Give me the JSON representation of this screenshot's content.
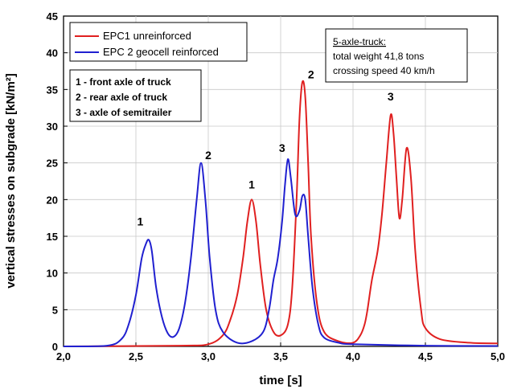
{
  "chart_data": {
    "type": "line",
    "xlabel": "time [s]",
    "ylabel": "vertical stresses on subgrade [kN/m²]",
    "xlim": [
      2.0,
      5.0
    ],
    "ylim": [
      0,
      45
    ],
    "x_ticks": [
      2.0,
      2.5,
      3.0,
      3.5,
      4.0,
      4.5,
      5.0
    ],
    "x_tick_labels": [
      "2,0",
      "2,5",
      "3,0",
      "3,5",
      "4,0",
      "4,5",
      "5,0"
    ],
    "y_ticks": [
      0,
      5,
      10,
      15,
      20,
      25,
      30,
      35,
      40,
      45
    ],
    "y_tick_labels": [
      "0",
      "5",
      "10",
      "15",
      "20",
      "25",
      "30",
      "35",
      "40",
      "45"
    ],
    "grid": true,
    "legend_position": "top-left",
    "series": [
      {
        "name": "EPC1 unreinforced",
        "color": "#e02020",
        "x": [
          2.0,
          2.8,
          3.0,
          3.1,
          3.15,
          3.2,
          3.24,
          3.27,
          3.3,
          3.33,
          3.36,
          3.4,
          3.45,
          3.5,
          3.55,
          3.58,
          3.61,
          3.63,
          3.65,
          3.67,
          3.69,
          3.71,
          3.75,
          3.8,
          3.9,
          4.0,
          4.05,
          4.08,
          4.1,
          4.13,
          4.17,
          4.2,
          4.23,
          4.26,
          4.28,
          4.3,
          4.32,
          4.34,
          4.37,
          4.4,
          4.43,
          4.47,
          4.5,
          4.6,
          4.8,
          5.0
        ],
        "y": [
          0,
          0.1,
          0.3,
          1.5,
          3.5,
          7,
          12,
          17,
          20,
          17,
          11,
          5,
          2,
          1.5,
          3,
          8,
          20,
          31,
          36,
          34,
          25,
          15,
          6,
          2,
          0.7,
          0.5,
          1.5,
          3,
          5,
          9,
          13,
          18,
          25,
          31.5,
          29,
          23,
          17.5,
          20,
          27,
          23,
          13,
          5,
          2.5,
          1,
          0.5,
          0.4
        ]
      },
      {
        "name": "EPC 2 geocell reinforced",
        "color": "#2020d0",
        "x": [
          2.0,
          2.3,
          2.4,
          2.45,
          2.5,
          2.54,
          2.57,
          2.59,
          2.61,
          2.64,
          2.68,
          2.72,
          2.76,
          2.8,
          2.84,
          2.88,
          2.92,
          2.95,
          2.98,
          3.01,
          3.05,
          3.1,
          3.2,
          3.3,
          3.38,
          3.42,
          3.45,
          3.48,
          3.51,
          3.53,
          3.55,
          3.57,
          3.6,
          3.63,
          3.65,
          3.67,
          3.69,
          3.72,
          3.76,
          3.8,
          3.9,
          4.0,
          4.5,
          5.0
        ],
        "y": [
          0,
          0.1,
          1,
          3,
          7,
          12,
          14,
          14.5,
          13,
          8,
          4,
          1.8,
          1.3,
          2.5,
          6,
          12,
          20,
          25,
          20,
          12,
          5,
          2,
          0.5,
          0.7,
          2,
          5,
          9,
          12,
          17,
          22,
          25.5,
          23,
          18,
          18.5,
          20.5,
          20,
          15,
          8,
          3,
          1.2,
          0.5,
          0.3,
          0.1,
          0.05
        ]
      }
    ],
    "peak_annotations": [
      {
        "text": "1",
        "x": 2.53,
        "y": 16.5
      },
      {
        "text": "2",
        "x": 3.0,
        "y": 25.5
      },
      {
        "text": "1",
        "x": 3.3,
        "y": 21.5
      },
      {
        "text": "3",
        "x": 3.51,
        "y": 26.5
      },
      {
        "text": "2",
        "x": 3.71,
        "y": 36.5
      },
      {
        "text": "3",
        "x": 4.26,
        "y": 33.5
      }
    ],
    "notes": [
      "1 - front axle of truck",
      "2 - rear axle of truck",
      "3 - axle of semitrailer"
    ],
    "info": {
      "title": "5-axle-truck:",
      "lines": [
        "total weight 41,8 tons",
        "crossing speed 40 km/h"
      ]
    }
  }
}
